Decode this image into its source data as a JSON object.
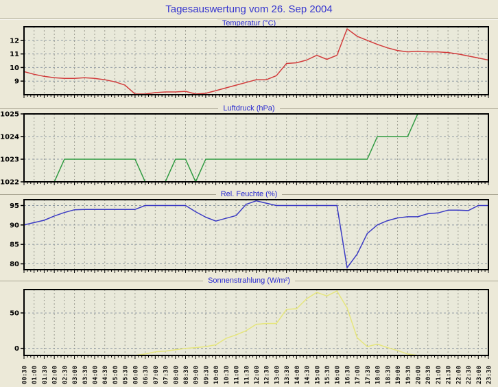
{
  "page": {
    "title": "Tagesauswertung vom 26. Sep 2004"
  },
  "colors": {
    "page_bg": "#ece9d8",
    "plot_bg": "#e9e9da",
    "border": "#000000",
    "grid_v": "#9c9c90",
    "grid_h": "#8e99a2",
    "title_text": "#3535cf",
    "chart_title_text": "#2525cf",
    "axis_text": "#000000",
    "temperature_line": "#d23b3b",
    "pressure_line": "#2e9a40",
    "humidity_line": "#3a3ac4",
    "solar_line": "#e6e67c"
  },
  "chart_data": {
    "type": "line",
    "grid": true,
    "legend_position": "none",
    "x_tick_label_rotation": -90,
    "categories": [
      "00:30",
      "01:00",
      "01:30",
      "02:00",
      "02:30",
      "03:00",
      "03:30",
      "04:00",
      "04:30",
      "05:00",
      "05:30",
      "06:00",
      "06:30",
      "07:00",
      "07:30",
      "08:00",
      "08:30",
      "09:00",
      "09:30",
      "10:00",
      "10:30",
      "11:00",
      "11:30",
      "12:00",
      "12:30",
      "13:00",
      "13:30",
      "14:00",
      "14:30",
      "15:00",
      "15:30",
      "16:00",
      "16:30",
      "17:00",
      "17:30",
      "18:00",
      "18:30",
      "19:00",
      "19:30",
      "20:00",
      "20:30",
      "21:00",
      "21:30",
      "22:00",
      "22:30",
      "23:00",
      "23:30"
    ],
    "charts": [
      {
        "id": "temperatur",
        "title": "Temperatur (°C)",
        "color": "#d23b3b",
        "ylim": [
          8,
          13
        ],
        "yticks": [
          9,
          10,
          11,
          12
        ],
        "values": [
          9.7,
          9.5,
          9.35,
          9.25,
          9.2,
          9.2,
          9.25,
          9.2,
          9.1,
          8.95,
          8.7,
          8.05,
          8.05,
          8.15,
          8.2,
          8.2,
          8.25,
          8.05,
          8.1,
          8.3,
          8.5,
          8.7,
          8.9,
          9.1,
          9.1,
          9.4,
          10.3,
          10.35,
          10.55,
          10.9,
          10.6,
          10.9,
          12.85,
          12.3,
          12.0,
          11.7,
          11.45,
          11.25,
          11.15,
          11.2,
          11.15,
          11.15,
          11.1,
          11.0,
          10.85,
          10.7,
          10.55
        ]
      },
      {
        "id": "luftdruck",
        "title": "Luftdruck (hPa)",
        "color": "#2e9a40",
        "ylim": [
          1022,
          1025
        ],
        "yticks": [
          1022,
          1023,
          1024,
          1025
        ],
        "values": [
          1022,
          1022,
          1022,
          1022,
          1023,
          1023,
          1023,
          1023,
          1023,
          1023,
          1023,
          1023,
          1022,
          1022,
          1022,
          1023,
          1023,
          1022,
          1023,
          1023,
          1023,
          1023,
          1023,
          1023,
          1023,
          1023,
          1023,
          1023,
          1023,
          1023,
          1023,
          1023,
          1023,
          1023,
          1023,
          1024,
          1024,
          1024,
          1024,
          1025,
          1025,
          1025,
          1025,
          1025,
          1025,
          1025,
          1025
        ]
      },
      {
        "id": "rel-feuchte",
        "title": "Rel. Feuchte (%)",
        "color": "#3a3ac4",
        "ylim": [
          78.5,
          96.5
        ],
        "yticks": [
          80,
          85,
          90,
          95
        ],
        "values": [
          90,
          90.6,
          91.2,
          92.3,
          93.2,
          93.9,
          94,
          94,
          94,
          94,
          94,
          94,
          95,
          95,
          95,
          95,
          95,
          93.4,
          92,
          91,
          91.7,
          92.4,
          95.3,
          96.2,
          95.6,
          95,
          95,
          95,
          95,
          95,
          95,
          95,
          79,
          82.5,
          87.8,
          90,
          91.1,
          91.8,
          92.1,
          92.1,
          92.9,
          93.1,
          93.8,
          93.8,
          93.7,
          95,
          95
        ]
      },
      {
        "id": "sonnenstrahlung",
        "title": "Sonnenstrahlung (W/m²)",
        "color": "#e6e67c",
        "ylim": [
          -10,
          83
        ],
        "yticks": [
          0,
          50
        ],
        "values": [
          -10,
          -10,
          -10,
          -10,
          -10,
          -10,
          -10,
          -10,
          -10,
          -10,
          -10,
          -10,
          -8,
          -5,
          -4,
          -2,
          0,
          1,
          2.5,
          5,
          14,
          19,
          25,
          34,
          35,
          35,
          55,
          56,
          70,
          79,
          74,
          81,
          57,
          15,
          2.5,
          6,
          1,
          -3,
          -8,
          -10,
          -10,
          -10,
          -10,
          -10,
          -10,
          -10,
          -10
        ]
      }
    ]
  }
}
